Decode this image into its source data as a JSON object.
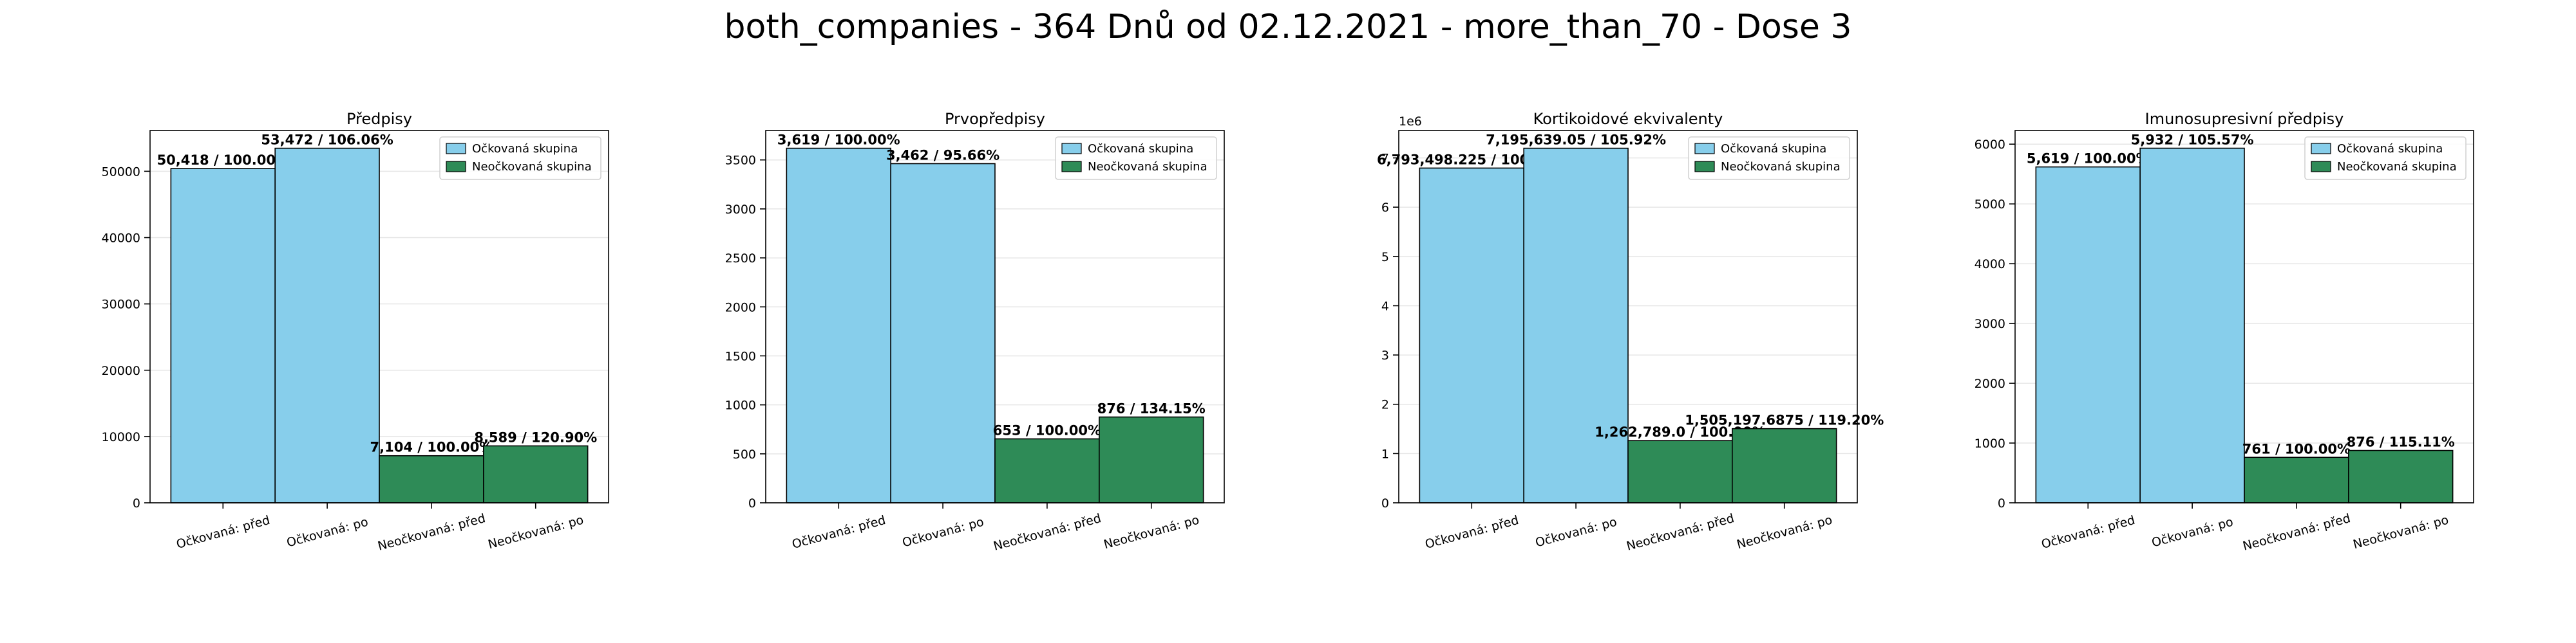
{
  "figure": {
    "suptitle": "both_companies - 364 Dnů od 02.12.2021 - more_than_70 - Dose 3"
  },
  "colors": {
    "vaccinated": "#87ceeb",
    "unvaccinated": "#2e8b57",
    "edge": "#000000",
    "grid": "#e6e6e6"
  },
  "chart_data": [
    {
      "type": "bar",
      "title": "Předpisy",
      "categories": [
        "Očkovaná: před",
        "Očkovaná: po",
        "Neočkovaná: před",
        "Neočkovaná: po"
      ],
      "values": [
        50418,
        53472,
        7104,
        8589
      ],
      "bar_labels": [
        "50,418 / 100.00%",
        "53,472 / 106.06%",
        "7,104 / 100.00%",
        "8,589 / 120.90%"
      ],
      "groups": [
        "Očkovaná skupina",
        "Očkovaná skupina",
        "Neočkovaná skupina",
        "Neočkovaná skupina"
      ],
      "legend": [
        "Očkovaná skupina",
        "Neočkovaná skupina"
      ],
      "ylim": [
        0,
        56145.6
      ],
      "yticks": [
        0,
        10000,
        20000,
        30000,
        40000,
        50000
      ],
      "ytick_labels": [
        "0",
        "10000",
        "20000",
        "30000",
        "40000",
        "50000"
      ],
      "y_offset_label": "",
      "legend_position": "upper right",
      "grid": true
    },
    {
      "type": "bar",
      "title": "Prvopředpisy",
      "categories": [
        "Očkovaná: před",
        "Očkovaná: po",
        "Neočkovaná: před",
        "Neočkovaná: po"
      ],
      "values": [
        3619,
        3462,
        653,
        876
      ],
      "bar_labels": [
        "3,619 / 100.00%",
        "3,462 / 95.66%",
        "653 / 100.00%",
        "876 / 134.15%"
      ],
      "groups": [
        "Očkovaná skupina",
        "Očkovaná skupina",
        "Neočkovaná skupina",
        "Neočkovaná skupina"
      ],
      "legend": [
        "Očkovaná skupina",
        "Neočkovaná skupina"
      ],
      "ylim": [
        0,
        3800
      ],
      "yticks": [
        0,
        500,
        1000,
        1500,
        2000,
        2500,
        3000,
        3500
      ],
      "ytick_labels": [
        "0",
        "500",
        "1000",
        "1500",
        "2000",
        "2500",
        "3000",
        "3500"
      ],
      "y_offset_label": "",
      "legend_position": "upper right",
      "grid": true
    },
    {
      "type": "bar",
      "title": "Kortikoidové ekvivalenty",
      "categories": [
        "Očkovaná: před",
        "Očkovaná: po",
        "Neočkovaná: před",
        "Neočkovaná: po"
      ],
      "values": [
        6793498.225,
        7195639.05,
        1262789.0,
        1505197.6875
      ],
      "bar_labels": [
        "6,793,498.225 / 100.00%",
        "7,195,639.05 / 105.92%",
        "1,262,789.0 / 100.00%",
        "1,505,197.6875 / 119.20%"
      ],
      "groups": [
        "Očkovaná skupina",
        "Očkovaná skupina",
        "Neočkovaná skupina",
        "Neočkovaná skupina"
      ],
      "legend": [
        "Očkovaná skupina",
        "Neočkovaná skupina"
      ],
      "ylim": [
        0,
        7555420
      ],
      "yticks": [
        0,
        1000000,
        2000000,
        3000000,
        4000000,
        5000000,
        6000000,
        7000000
      ],
      "ytick_labels": [
        "0",
        "1",
        "2",
        "3",
        "4",
        "5",
        "6",
        "7"
      ],
      "y_offset_label": "1e6",
      "legend_position": "upper right",
      "grid": true
    },
    {
      "type": "bar",
      "title": "Imunosupresivní předpisy",
      "categories": [
        "Očkovaná: před",
        "Očkovaná: po",
        "Neočkovaná: před",
        "Neočkovaná: po"
      ],
      "values": [
        5619,
        5932,
        761,
        876
      ],
      "bar_labels": [
        "5,619 / 100.00%",
        "5,932 / 105.57%",
        "761 / 100.00%",
        "876 / 115.11%"
      ],
      "groups": [
        "Očkovaná skupina",
        "Očkovaná skupina",
        "Neočkovaná skupina",
        "Neočkovaná skupina"
      ],
      "legend": [
        "Očkovaná skupina",
        "Neočkovaná skupina"
      ],
      "ylim": [
        0,
        6228
      ],
      "yticks": [
        0,
        1000,
        2000,
        3000,
        4000,
        5000,
        6000
      ],
      "ytick_labels": [
        "0",
        "1000",
        "2000",
        "3000",
        "4000",
        "5000",
        "6000"
      ],
      "y_offset_label": "",
      "legend_position": "upper right",
      "grid": true
    }
  ]
}
